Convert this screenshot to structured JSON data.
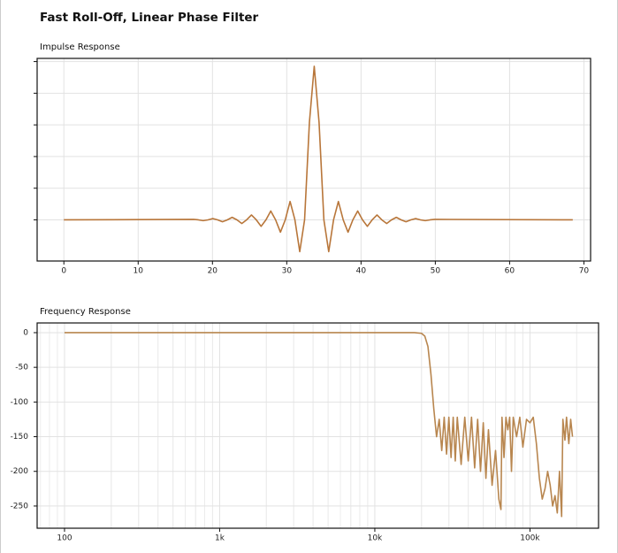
{
  "title": "Fast Roll-Off, Linear Phase Filter",
  "chart_data": [
    {
      "type": "line",
      "title": "Impulse Response",
      "color": "#b8763a",
      "grid": true,
      "ytick_labels": false,
      "xlim": [
        -3.6,
        70.9
      ],
      "xticks": [
        0,
        10,
        20,
        30,
        40,
        50,
        60,
        70
      ],
      "ylim": [
        -0.26,
        1.02
      ],
      "yticks": [
        0,
        0.2,
        0.4,
        0.6,
        0.8,
        1.0
      ],
      "x": [
        0,
        17.45,
        18.1,
        18.75,
        19.4,
        20.05,
        20.7,
        21.35,
        22.0,
        22.65,
        23.3,
        23.95,
        24.6,
        25.25,
        25.9,
        26.55,
        27.2,
        27.85,
        28.5,
        29.15,
        29.8,
        30.45,
        31.1,
        31.75,
        32.4,
        33.05,
        33.7,
        34.35,
        35.0,
        35.65,
        36.3,
        36.95,
        37.6,
        38.25,
        38.9,
        39.55,
        40.2,
        40.85,
        41.5,
        42.15,
        42.8,
        43.45,
        44.1,
        44.75,
        45.4,
        46.05,
        46.7,
        47.35,
        48.0,
        48.65,
        49.3,
        49.95,
        68.5
      ],
      "values": [
        0,
        0.003,
        0,
        -0.005,
        0,
        0.008,
        0,
        -0.012,
        0,
        0.016,
        0,
        -0.023,
        0,
        0.031,
        0,
        -0.041,
        0,
        0.056,
        0,
        -0.078,
        0,
        0.116,
        0,
        -0.201,
        0,
        0.616,
        0.97,
        0.616,
        0,
        -0.201,
        0,
        0.116,
        0,
        -0.078,
        0,
        0.056,
        0,
        -0.041,
        0,
        0.031,
        0,
        -0.023,
        0,
        0.016,
        0,
        -0.012,
        0,
        0.008,
        0,
        -0.005,
        0,
        0.003,
        0
      ]
    },
    {
      "type": "line",
      "title": "Frequency Response",
      "color": "#b8864f",
      "grid": true,
      "xscale": "log",
      "minor_grid": true,
      "ytick_labels": true,
      "xlim": [
        66.6,
        276700
      ],
      "xticks": [
        100,
        {
          "value": 1000,
          "label": "1k"
        },
        {
          "value": 10000,
          "label": "10k"
        },
        {
          "value": 100000,
          "label": "100k"
        }
      ],
      "ylim": [
        -282,
        14
      ],
      "yticks": [
        0,
        -50,
        -100,
        -150,
        -200,
        -250
      ],
      "x": [
        100,
        1000,
        10000,
        18000,
        20000,
        21000,
        22000,
        23000,
        24000,
        25000,
        26000,
        27000,
        28000,
        29000,
        30000,
        31000,
        32000,
        33000,
        34000,
        36000,
        38000,
        40000,
        42000,
        44000,
        46000,
        48000,
        50000,
        52000,
        54000,
        57000,
        60000,
        63000,
        65000,
        66000,
        68000,
        70000,
        72000,
        74000,
        76000,
        78000,
        82000,
        86000,
        90000,
        95000,
        100000,
        105000,
        110000,
        115000,
        120000,
        125000,
        130000,
        135000,
        140000,
        145000,
        150000,
        155000,
        160000,
        163000,
        168000,
        172000,
        178000,
        183000,
        188000
      ],
      "values": [
        0,
        0,
        0,
        0,
        -1,
        -5,
        -20,
        -60,
        -110,
        -150,
        -125,
        -170,
        -122,
        -175,
        -122,
        -180,
        -122,
        -185,
        -122,
        -190,
        -122,
        -185,
        -122,
        -195,
        -125,
        -200,
        -130,
        -210,
        -140,
        -220,
        -170,
        -240,
        -255,
        -122,
        -180,
        -122,
        -140,
        -122,
        -200,
        -122,
        -150,
        -122,
        -165,
        -125,
        -130,
        -122,
        -160,
        -210,
        -240,
        -225,
        -200,
        -220,
        -250,
        -235,
        -260,
        -200,
        -265,
        -125,
        -155,
        -122,
        -160,
        -125,
        -150
      ]
    }
  ]
}
